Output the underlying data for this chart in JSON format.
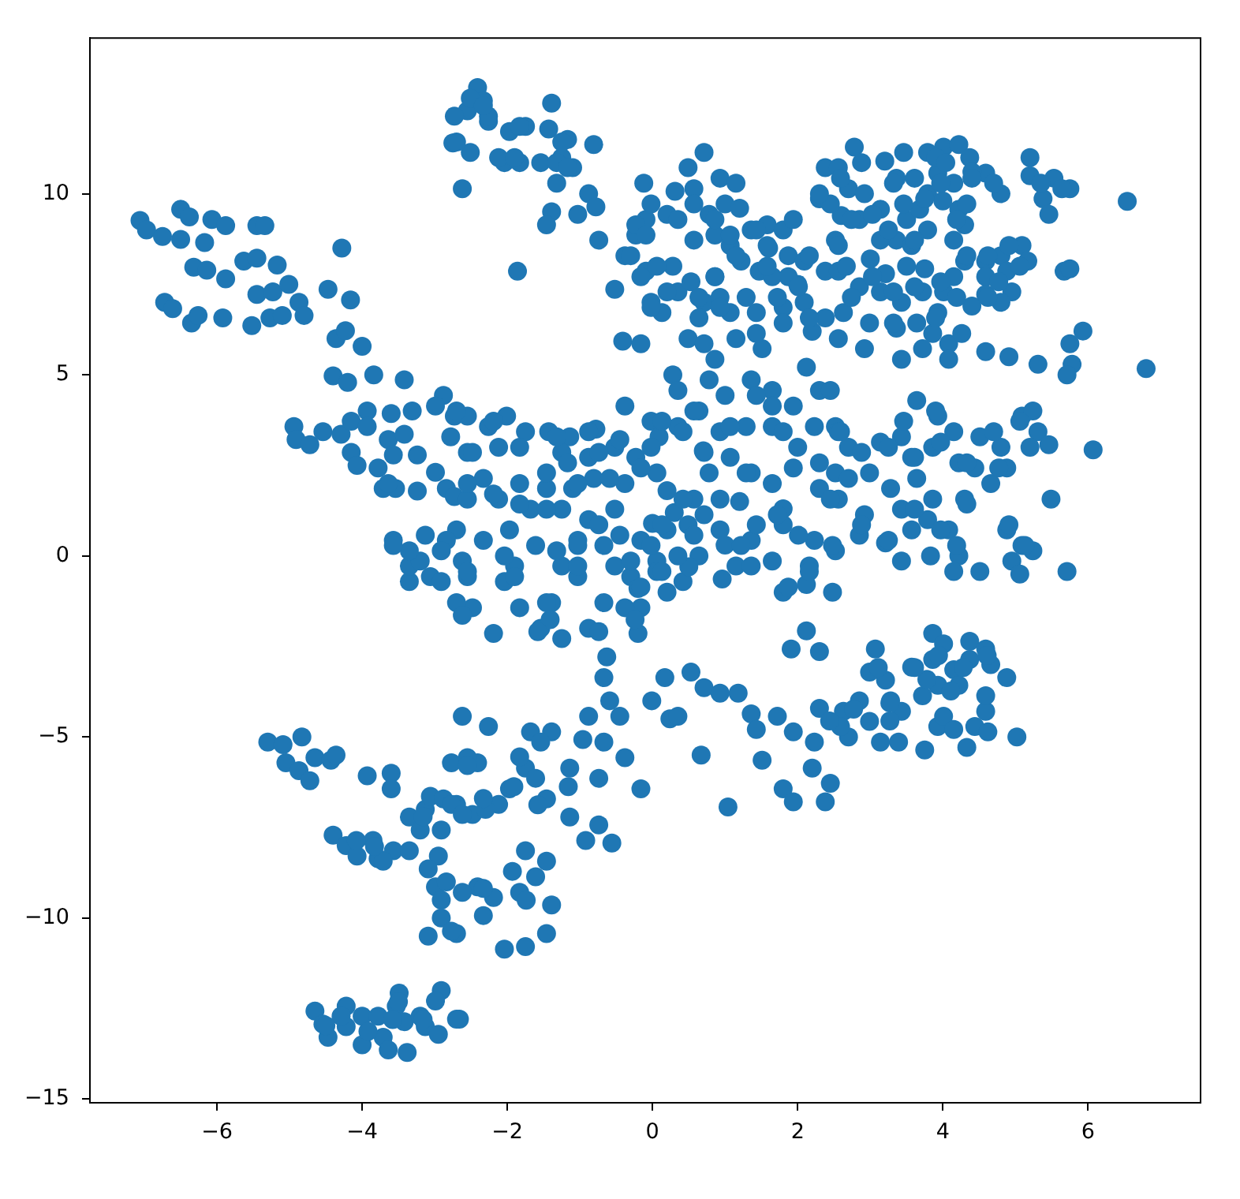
{
  "chart_data": {
    "type": "scatter",
    "color": "#1f77b4",
    "marker": "circle",
    "xlim": [
      -7.75,
      7.55
    ],
    "ylim": [
      -15.1,
      14.3
    ],
    "xticks": [
      {
        "value": -6,
        "label": "−6"
      },
      {
        "value": -4,
        "label": "−4"
      },
      {
        "value": -2,
        "label": "−2"
      },
      0,
      2,
      4,
      6
    ],
    "yticks": [
      {
        "value": -15,
        "label": "−15"
      },
      {
        "value": -10,
        "label": "−10"
      },
      {
        "value": -5,
        "label": "−5"
      },
      0,
      5,
      10
    ],
    "x": [
      -7.06,
      -6.97,
      -6.75,
      -6.5,
      -6.5,
      -6.38,
      -6.07,
      -5.88,
      -6.17,
      -6.32,
      -6.14,
      -5.88,
      -6.72,
      -6.61,
      -6.35,
      -6.26,
      -5.92,
      -5.52,
      -5.45,
      -5.34,
      -5.63,
      -5.45,
      -5.17,
      -5.45,
      -5.23,
      -5.01,
      -4.87,
      -4.8,
      -5.27,
      -5.1,
      -4.28,
      -4.47,
      -4.16,
      -4.36,
      -4.23,
      -4.0,
      -4.4,
      -4.2,
      -3.84,
      -3.42,
      -4.94,
      -4.91,
      -4.72,
      -4.54,
      -4.29,
      -4.15,
      -3.93,
      -3.93,
      -3.6,
      -3.31,
      -3.64,
      -3.42,
      -4.15,
      -4.07,
      -3.78,
      -3.57,
      -3.24,
      -3.71,
      -3.54,
      -3.24,
      -2.99,
      -2.84,
      -2.73,
      -2.88,
      -2.99,
      -2.73,
      -2.78,
      -2.55,
      -2.55,
      -2.26,
      -2.01,
      -1.75,
      -1.43,
      -1.14,
      -0.78,
      -0.38,
      -0.02,
      0.09,
      -2.48,
      -2.12,
      -1.83,
      -1.25,
      -0.88,
      -0.52,
      -0.23,
      -2.33,
      -1.83,
      -1.46,
      -1.1,
      -0.81,
      -0.38,
      0.06,
      -2.55,
      -2.12,
      -1.68,
      -1.25,
      -0.88,
      -0.52,
      -2.7,
      -2.33,
      -1.97,
      -1.61,
      -1.03,
      -0.67,
      -0.16,
      0.2,
      -2.62,
      -1.9,
      -1.25,
      -0.52,
      0.06,
      0.57,
      0.78,
      1.07,
      1.36,
      1.65,
      1.94,
      2.3,
      2.52,
      0.49,
      0.93,
      1.36,
      1.8,
      2.23,
      2.52,
      0.64,
      1.15,
      1.65,
      2.16,
      0.35,
      0.64,
      1.0,
      1.36,
      1.65,
      1.94,
      2.3,
      2.23,
      2.52,
      1.29,
      1.65,
      0.93,
      2.12,
      0.49,
      0.71,
      0.86,
      0.28,
      0.35,
      0.78,
      -0.41,
      -0.16,
      -0.52,
      -0.38,
      -0.23,
      -0.09,
      -0.12,
      -0.02,
      0.2,
      -0.09,
      -0.02,
      0.13,
      0.35,
      0.28,
      0.53,
      0.71,
      0.64,
      0.93,
      0.86,
      1.07,
      0.57,
      0.86,
      1.07,
      1.22,
      0.78,
      0.57,
      0.31,
      0.49,
      0.71,
      0.93,
      1.15,
      1.0,
      1.36,
      1.58,
      1.8,
      1.94,
      1.47,
      1.65,
      1.87,
      2.09,
      2.38,
      1.43,
      1.8,
      2.09,
      2.38,
      1.51,
      2.3,
      2.38,
      2.52,
      1.2,
      2.0,
      2.6,
      2.2,
      1.6,
      -2.41,
      -2.33,
      -2.55,
      -2.26,
      -1.97,
      -1.75,
      -1.39,
      -1.43,
      -1.17,
      -0.81,
      -2.04,
      -1.83,
      -1.54,
      -1.25,
      -1.1,
      -1.32,
      -0.88,
      -0.78,
      -1.03,
      -1.39,
      -1.46,
      -2.62,
      -1.86,
      -0.74,
      -2.73,
      -2.75,
      -2.51,
      -2.51,
      2.78,
      2.56,
      2.7,
      2.92,
      3.46,
      3.36,
      3.14,
      3.5,
      3.79,
      4.01,
      4.22,
      4.37,
      3.93,
      4.15,
      3.79,
      3.68,
      2.85,
      4.22,
      4.3,
      4.15,
      3.79,
      3.36,
      3.57,
      3.14,
      2.56,
      4.59,
      4.8,
      5.2,
      5.2,
      5.53,
      5.75,
      5.38,
      5.46,
      6.54,
      5.67,
      5.75,
      3.2,
      4.0,
      3.5,
      4.4,
      3.0,
      4.4,
      3.9,
      4.3,
      4.59,
      4.8,
      5.09,
      5.17,
      4.88,
      4.59,
      4.95,
      4.59,
      4.8,
      4.15,
      4.01,
      3.72,
      3.43,
      3.14,
      2.85,
      2.56,
      3.21,
      3.75,
      2.63,
      2.99,
      3.36,
      3.64,
      3.93,
      3.86,
      4.08,
      4.08,
      3.72,
      3.43,
      2.92,
      2.56,
      4.59,
      4.91,
      5.31,
      5.75,
      5.93,
      5.78,
      5.71,
      6.8,
      2.45,
      3.64,
      3.93,
      4.15,
      4.51,
      4.8,
      5.09,
      5.24,
      5.31,
      5.46,
      6.07,
      2.56,
      2.7,
      3.14,
      3.43,
      3.57,
      3.86,
      2.99,
      2.7,
      3.28,
      3.64,
      4.22,
      4.44,
      4.88,
      4.66,
      5.49,
      2.56,
      2.92,
      3.43,
      3.86,
      3.79,
      4.08,
      4.3,
      4.22,
      2.85,
      3.21,
      3.57,
      3.43,
      2.48,
      4.88,
      5.09,
      5.24,
      4.95,
      4.51,
      5.71,
      4.15,
      5.06,
      2.48,
      3.07,
      2.99,
      3.21,
      3.57,
      3.86,
      4.01,
      4.37,
      4.59,
      4.66,
      4.88,
      3.86,
      4.15,
      4.37,
      3.93,
      4.22,
      3.72,
      3.28,
      3.43,
      2.85,
      2.63,
      2.7,
      2.99,
      3.14,
      3.39,
      3.75,
      3.93,
      4.01,
      4.15,
      4.33,
      4.44,
      4.59,
      4.62,
      4.59,
      5.02,
      0.96,
      1.8,
      2.12,
      2.12,
      1.91,
      2.3,
      0.53,
      0.71,
      0.93,
      1.18,
      0.17,
      -0.01,
      0.24,
      0.35,
      0.67,
      1.04,
      1.36,
      1.43,
      1.72,
      1.94,
      2.3,
      2.23,
      1.8,
      1.94,
      2.38,
      2.2,
      2.45,
      1.51,
      2.59,
      -0.63,
      -0.67,
      -0.59,
      -0.88,
      -0.45,
      -0.96,
      -0.67,
      -0.38,
      -0.16,
      -1.14,
      -0.74,
      -0.74,
      -0.92,
      -0.56,
      -1.14,
      -1.68,
      -1.39,
      -1.54,
      -2.26,
      -2.41,
      -2.55,
      -2.7,
      -1.75,
      -1.97,
      -1.61,
      -1.46,
      -2.12,
      -2.48,
      -2.3,
      -1.75,
      -1.93,
      -2.41,
      -2.19,
      -1.83,
      -1.61,
      -1.46,
      -1.39,
      -1.46,
      -1.75,
      -2.04,
      -2.33,
      -2.7,
      -2.66,
      -2.19,
      -1.54,
      -1.25,
      -0.88,
      -0.2,
      -2.48,
      -1.83,
      -1.39,
      -0.67,
      -0.16,
      0.2,
      0.42,
      -2.55,
      -2.04,
      -1.03,
      -0.3,
      0.06,
      1.36,
      -5.3,
      -5.09,
      -4.83,
      -5.05,
      -4.87,
      -4.72,
      -4.65,
      -4.43,
      -4.36,
      -3.93,
      -3.6,
      -3.6,
      -4.4,
      -4.22,
      -4.07,
      -3.85,
      -3.78,
      -3.57,
      -3.35,
      -3.71,
      -3.35,
      -3.13,
      -3.06,
      -2.88,
      -2.77,
      -3.2,
      -2.91,
      -2.95,
      -3.09,
      -2.99,
      -2.84,
      -2.91,
      -3.09,
      -2.91,
      -2.77,
      -2.62,
      -2.62,
      -2.77,
      -2.55,
      -2.62,
      -2.7,
      -2.62,
      -3.35,
      -3.06,
      -2.91,
      -3.35,
      -3.2,
      -4.65,
      -4.54,
      -4.47,
      -4.22,
      -4.22,
      -4.0,
      -4.0,
      -3.78,
      -3.71,
      -3.64,
      -3.49,
      -3.53,
      -3.42,
      -3.38,
      -3.2,
      -3.13,
      -2.95,
      -2.91,
      -2.99,
      -2.7,
      -4.29,
      -3.57,
      -3.35,
      -3.13,
      -2.84,
      0.3,
      0.7,
      1.2,
      1.8,
      2.0,
      0.2,
      -0.2,
      0.5,
      1.0,
      0.0,
      -2.7,
      -2.19,
      -1.32,
      -0.88,
      -0.45,
      -0.74,
      -1.17,
      -1.46,
      -1.03,
      -0.59,
      -0.16,
      -0.02,
      0.13,
      0.42,
      0.71,
      0.57,
      1.07,
      1.43,
      1.65,
      1.8,
      1.29,
      0.93,
      0.42,
      0.13,
      -0.02,
      0.35,
      0.57,
      -0.45,
      -0.74,
      -1.03,
      -1.46,
      -1.83,
      -2.19,
      -2.55,
      -3.64,
      -3.57,
      -2.91,
      -2.55,
      -2.04,
      -1.9,
      -1.32,
      -1.46,
      -1.03,
      -0.3,
      -0.16,
      -0.38,
      0.13,
      0.71,
      1.22,
      1.43,
      1.72,
      2.01,
      2.16,
      1.87,
      2.45,
      2.3,
      2.59,
      2.88,
      3.25,
      3.61,
      3.97,
      4.33,
      4.77,
      3.61,
      3.97,
      4.19,
      3.83,
      4.33,
      4.91,
      5.13,
      2.88,
      3.25,
      3.46,
      3.9,
      5.06,
      5.2,
      4.7,
      -2.26,
      -1.83,
      -2.12,
      -1.9,
      -1.32,
      -1.17,
      -1.25,
      -2.7,
      -2.33,
      -0.23,
      -0.09,
      -0.3,
      -0.16,
      0.06,
      0.2,
      -0.02,
      0.35,
      0.57,
      0.86,
      1.07,
      1.15,
      0.86,
      0.64,
      0.93,
      1.29,
      1.72,
      1.58,
      1.87,
      2.16,
      2.01,
      1.43,
      1.58,
      2.16,
      1.8,
      1.43,
      1.15,
      2.45,
      2.3,
      2.59,
      2.88,
      2.74,
      3.03,
      3.32,
      3.61,
      4.04,
      3.97,
      3.75,
      3.46,
      3.25,
      3.61,
      4.33,
      4.19,
      4.4,
      4.7,
      2.67,
      3.03,
      2.74,
      3.32,
      3.61,
      3.97,
      4.19,
      3.9,
      4.26,
      3.32,
      4.33,
      4.62,
      4.91,
      5.06,
      4.77,
      4.62,
      5.35,
      5.64,
      -1.41,
      -1.58,
      -0.24,
      -0.74,
      3.94,
      4.28,
      3.78,
      4.11,
      3.27,
      2.77,
      2.44,
      3.27,
      4.61,
      3.61,
      3.11,
      -1.91,
      -2.33,
      -3.16,
      -1.58,
      -1.83,
      -1.16,
      -2.33,
      -1.74,
      -3.83,
      -4.08,
      -3.58,
      -4.5,
      -3.5,
      -3.92,
      -3.16
    ],
    "values": [
      9.26,
      9.0,
      8.82,
      8.74,
      9.57,
      9.36,
      9.29,
      9.12,
      8.65,
      7.97,
      7.89,
      7.65,
      7.0,
      6.83,
      6.43,
      6.64,
      6.57,
      6.36,
      9.12,
      9.12,
      8.14,
      8.22,
      8.03,
      7.22,
      7.29,
      7.5,
      7.0,
      6.64,
      6.57,
      6.64,
      8.5,
      7.36,
      7.07,
      6.0,
      6.22,
      5.79,
      4.97,
      4.79,
      5.0,
      4.86,
      3.57,
      3.21,
      3.07,
      3.43,
      3.36,
      3.72,
      4.0,
      3.57,
      3.93,
      4.0,
      3.21,
      3.36,
      2.86,
      2.5,
      2.43,
      2.79,
      2.79,
      1.86,
      1.86,
      1.79,
      2.31,
      1.86,
      1.64,
      4.43,
      4.14,
      3.86,
      3.29,
      2.86,
      3.86,
      3.57,
      3.86,
      3.43,
      3.43,
      3.29,
      3.5,
      4.14,
      3.72,
      3.29,
      2.86,
      3.0,
      3.0,
      2.86,
      2.72,
      3.0,
      2.72,
      2.14,
      2.0,
      1.86,
      1.86,
      2.14,
      2.0,
      2.29,
      1.57,
      1.57,
      1.29,
      1.29,
      1.0,
      1.29,
      0.72,
      0.43,
      0.72,
      0.29,
      0.43,
      0.29,
      0.43,
      0.72,
      -0.14,
      -0.28,
      -0.28,
      -0.28,
      -0.14,
      1.57,
      2.29,
      2.72,
      2.29,
      2.0,
      2.43,
      1.86,
      2.29,
      0.86,
      0.72,
      0.43,
      0.86,
      0.43,
      0.14,
      0.0,
      -0.28,
      -0.14,
      -0.28,
      3.57,
      4.0,
      4.43,
      4.86,
      4.57,
      4.14,
      4.57,
      3.57,
      3.57,
      3.57,
      3.57,
      3.43,
      5.21,
      6.0,
      5.86,
      5.43,
      5.0,
      4.57,
      4.86,
      5.93,
      5.86,
      7.36,
      8.29,
      8.86,
      9.29,
      10.29,
      9.72,
      9.43,
      7.86,
      7.0,
      6.72,
      7.29,
      8.0,
      7.57,
      7.0,
      6.57,
      7.14,
      7.71,
      6.72,
      8.72,
      8.86,
      8.57,
      8.14,
      9.43,
      10.14,
      10.07,
      10.72,
      11.14,
      10.43,
      10.29,
      9.72,
      9.0,
      9.14,
      9.0,
      9.29,
      7.86,
      7.71,
      8.29,
      8.14,
      7.86,
      6.72,
      6.86,
      7.0,
      6.57,
      5.72,
      9.86,
      10.72,
      8.72,
      9.6,
      7.5,
      9.4,
      6.2,
      8.5,
      12.93,
      12.57,
      12.29,
      12.0,
      11.72,
      11.86,
      12.5,
      11.79,
      11.5,
      11.36,
      10.86,
      10.86,
      10.86,
      11.0,
      10.72,
      10.29,
      10.0,
      9.64,
      9.43,
      9.5,
      9.14,
      10.14,
      7.86,
      8.72,
      12.14,
      11.4,
      11.14,
      12.64,
      11.29,
      10.72,
      10.14,
      10.0,
      11.14,
      10.43,
      9.57,
      9.29,
      11.14,
      11.29,
      11.36,
      11.0,
      10.57,
      10.29,
      10.0,
      9.57,
      9.29,
      9.57,
      9.14,
      8.72,
      9.0,
      8.72,
      8.57,
      8.72,
      8.57,
      10.57,
      10.0,
      11.0,
      10.5,
      10.43,
      10.14,
      9.86,
      9.43,
      9.79,
      7.86,
      7.93,
      10.9,
      9.8,
      8.0,
      6.9,
      8.2,
      10.6,
      11.0,
      8.14,
      8.14,
      8.29,
      8.57,
      8.14,
      7.86,
      7.71,
      7.29,
      7.22,
      7.0,
      7.71,
      7.29,
      7.29,
      7.0,
      7.29,
      7.43,
      7.86,
      7.79,
      7.93,
      6.72,
      6.43,
      6.29,
      6.43,
      6.72,
      6.14,
      5.86,
      5.43,
      5.72,
      5.43,
      5.72,
      6.0,
      5.64,
      5.5,
      5.29,
      5.86,
      6.21,
      5.29,
      5.0,
      5.17,
      4.57,
      4.29,
      3.86,
      3.43,
      3.29,
      3.0,
      3.86,
      4.0,
      3.43,
      3.07,
      2.93,
      3.43,
      3.0,
      3.14,
      3.29,
      2.72,
      3.0,
      2.29,
      2.14,
      1.86,
      2.14,
      2.57,
      2.43,
      2.43,
      2.0,
      1.57,
      1.57,
      1.14,
      1.29,
      1.57,
      1.0,
      0.72,
      1.57,
      0.0,
      0.57,
      0.36,
      0.72,
      -0.14,
      0.29,
      0.72,
      0.29,
      0.14,
      -0.14,
      -0.43,
      -0.43,
      -0.43,
      -0.5,
      -1.0,
      -2.57,
      -3.21,
      -3.43,
      -3.07,
      -2.14,
      -2.43,
      -2.36,
      -2.57,
      -3.0,
      -3.36,
      -2.86,
      -3.14,
      -2.86,
      -3.57,
      -3.57,
      -3.86,
      -4.0,
      -4.29,
      -4.0,
      -4.29,
      -5.0,
      -4.57,
      -5.14,
      -5.14,
      -5.36,
      -4.71,
      -4.43,
      -4.79,
      -5.29,
      -4.71,
      -4.29,
      -4.86,
      -3.86,
      -5.0,
      -0.64,
      -1.0,
      -0.79,
      -2.07,
      -2.57,
      -2.64,
      -3.21,
      -3.64,
      -3.79,
      -3.79,
      -3.36,
      -4.0,
      -4.5,
      -4.43,
      -5.5,
      -6.93,
      -4.36,
      -4.79,
      -4.43,
      -4.86,
      -4.21,
      -5.14,
      -6.43,
      -6.79,
      -6.79,
      -5.86,
      -6.28,
      -5.64,
      -4.71,
      -2.79,
      -3.36,
      -4.0,
      -4.43,
      -4.43,
      -5.07,
      -5.14,
      -5.57,
      -6.43,
      -5.86,
      -6.14,
      -7.43,
      -7.86,
      -7.93,
      -7.21,
      -4.86,
      -4.86,
      -5.14,
      -4.71,
      -5.71,
      -5.57,
      -6.86,
      -5.86,
      -6.43,
      -6.14,
      -6.71,
      -6.86,
      -7.14,
      -7.0,
      -8.14,
      -8.71,
      -9.14,
      -9.43,
      -9.29,
      -8.86,
      -8.43,
      -9.64,
      -10.43,
      -10.79,
      -10.86,
      -9.93,
      -10.43,
      -12.79,
      -2.14,
      -2.0,
      -2.28,
      -2.0,
      -2.14,
      -1.43,
      -1.43,
      -1.29,
      -1.29,
      -1.43,
      -1.0,
      -0.71,
      -0.57,
      -0.71,
      -0.57,
      -0.57,
      -0.43,
      -0.28,
      -5.14,
      -5.21,
      -5.0,
      -5.71,
      -5.93,
      -6.21,
      -5.57,
      -5.64,
      -5.5,
      -6.07,
      -6.0,
      -6.43,
      -7.71,
      -8.0,
      -8.29,
      -7.86,
      -8.36,
      -8.14,
      -8.14,
      -8.43,
      -7.21,
      -7.0,
      -6.64,
      -6.71,
      -6.86,
      -7.57,
      -7.57,
      -8.29,
      -8.64,
      -9.14,
      -9.0,
      -9.5,
      -10.5,
      -10.0,
      -10.36,
      -9.29,
      -4.43,
      -5.71,
      -5.79,
      -7.14,
      -1.29,
      -1.64,
      -0.71,
      -0.57,
      -0.71,
      -0.28,
      -0.14,
      -12.57,
      -12.93,
      -13.29,
      -12.43,
      -13.0,
      -12.71,
      -13.5,
      -12.71,
      -13.29,
      -13.64,
      -12.07,
      -12.43,
      -12.86,
      -13.71,
      -12.71,
      -13.0,
      -13.21,
      -12.0,
      -12.29,
      -12.79,
      -12.71,
      0.43,
      0.14,
      0.57,
      0.43,
      1.2,
      2.9,
      1.5,
      1.3,
      3.0,
      1.8,
      -0.9,
      -0.3,
      0.3,
      0.9,
      4.0,
      3.72,
      3.29,
      3.43,
      3.21,
      2.86,
      2.57,
      2.29,
      2.0,
      2.14,
      2.43,
      3.0,
      3.72,
      3.43,
      2.86,
      4.0,
      3.57,
      4.43,
      4.14,
      3.43,
      2.29,
      1.57,
      1.57,
      0.86,
      0.29,
      0.0,
      0.57,
      0.57,
      0.86,
      0.29,
      1.29,
      1.43,
      1.71,
      2.0,
      2.0,
      0.29,
      0.14,
      -0.43,
      0.0,
      -0.57,
      0.14,
      -1.29,
      -0.28,
      -0.14,
      -0.86,
      -1.43,
      -0.43,
      1.14,
      0.29,
      0.86,
      1.14,
      0.57,
      -0.43,
      -0.86,
      1.57,
      2.57,
      3.43,
      2.86,
      3.0,
      2.72,
      3.14,
      2.57,
      2.43,
      1.29,
      0.72,
      0.29,
      0.0,
      1.43,
      0.86,
      0.29,
      0.86,
      0.43,
      3.72,
      4.0,
      3.72,
      3.0,
      3.43,
      12.14,
      11.86,
      11.0,
      11.0,
      10.86,
      10.72,
      11.43,
      11.43,
      12.43,
      9.14,
      8.86,
      8.29,
      7.71,
      8.0,
      7.29,
      6.86,
      9.29,
      9.72,
      9.29,
      8.86,
      8.29,
      7.71,
      7.14,
      6.86,
      7.14,
      7.14,
      8.0,
      7.71,
      8.29,
      7.43,
      9.0,
      8.57,
      6.57,
      6.43,
      6.14,
      6.0,
      9.72,
      10.0,
      10.43,
      10.86,
      9.29,
      9.43,
      10.29,
      10.43,
      10.86,
      10.29,
      9.86,
      9.72,
      9.0,
      8.72,
      9.72,
      9.29,
      10.43,
      10.29,
      8.0,
      7.71,
      7.14,
      7.29,
      7.43,
      7.57,
      7.14,
      6.57,
      6.14,
      6.43,
      8.29,
      8.29,
      8.57,
      8.0,
      7.57,
      7.14,
      10.29,
      10.14,
      -1.76,
      -2.09,
      -1.76,
      -2.09,
      -2.75,
      -3.08,
      -3.41,
      -3.73,
      -4.06,
      -4.23,
      -4.56,
      -4.56,
      -2.75,
      -3.08,
      -3.08,
      -6.37,
      -6.7,
      -7.2,
      -6.87,
      -5.55,
      -6.37,
      -9.18,
      -9.51,
      -8.02,
      -7.86,
      -12.8,
      -12.97,
      -12.31,
      -13.13,
      -12.8
    ]
  }
}
